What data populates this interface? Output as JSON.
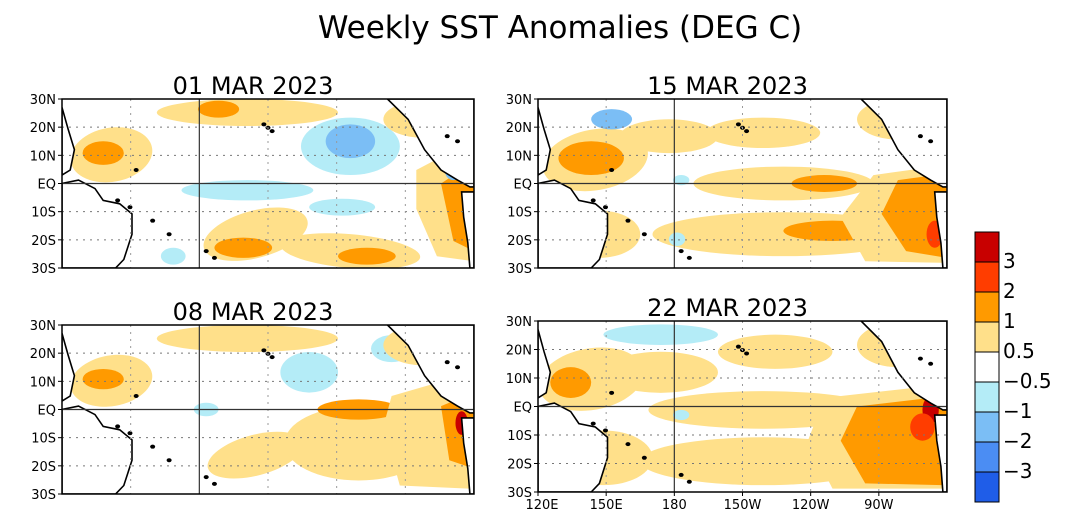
{
  "title": "Weekly SST Anomalies (DEG C)",
  "panels": [
    {
      "date": "01 MAR 2023"
    },
    {
      "date": "15 MAR 2023"
    },
    {
      "date": "08 MAR 2023"
    },
    {
      "date": "22 MAR 2023"
    }
  ],
  "lat_labels": [
    "30N",
    "20N",
    "10N",
    "EQ",
    "10S",
    "20S",
    "30S"
  ],
  "lon_labels": [
    "120E",
    "150E",
    "180",
    "150W",
    "120W",
    "90W"
  ],
  "colorbar": {
    "labels": [
      "3",
      "2",
      "1",
      "0.5",
      "−0.5",
      "−1",
      "−2",
      "−3"
    ],
    "colors": [
      "#c80000",
      "#ff3d00",
      "#ff9a00",
      "#ffe08a",
      "#ffffff",
      "#b4ecf7",
      "#7bbef5",
      "#4b8df3",
      "#1f5de8"
    ]
  },
  "colors": {
    "land": "#ffffff",
    "coast": "#000000",
    "warm_light": "#ffe08a",
    "warm_mid": "#ff9a00",
    "warm_hot": "#ff3d00",
    "warm_max": "#c80000",
    "cool_light": "#b4ecf7",
    "cool_mid": "#7bbef5"
  }
}
